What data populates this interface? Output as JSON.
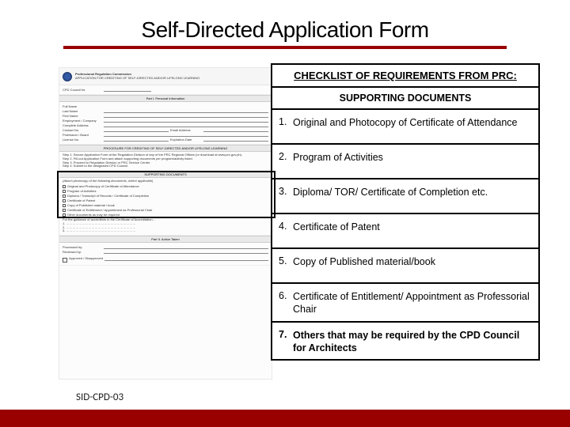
{
  "title": "Self-Directed Application Form",
  "form": {
    "org": "Professional Regulation Commission",
    "subtitle": "APPLICATION FOR CREDITING OF SELF-DIRECTED AND/OR LIFELONG LEARNING",
    "council_label": "CPD Council for",
    "part1": "Part I. Personal Information",
    "fields": {
      "fullname": "Full Name",
      "lastname": "Last Name",
      "firstname": "First Name",
      "mi": "M.I.",
      "employer": "Employment / Company",
      "address": "Complete Address",
      "contact": "Contact No.",
      "email": "Email Address",
      "profession": "Profession / Board",
      "license": "License No.",
      "expire": "Expiration Date"
    },
    "proc_bar": "PROCEDURE FOR CREDITING OF SELF-DIRECTED AND/OR LIFELONG LEARNING",
    "steps": {
      "s1": "Step 1. Secure Application Form at the Regulation Division of any of the PRC Regional Offices (or download at www.prc.gov.ph).",
      "s2": "Step 2. Fill-out Application Form and attach supporting documents per program/activity listed.",
      "s3": "Step 3. Proceed to Regulation Division or PRC Service Center.",
      "s4": "Step 4. Submit to the designated CPD Council."
    },
    "sup_bar": "SUPPORTING DOCUMENTS",
    "sup_note": "(Attach photocopy of the following documents, where applicable)",
    "sup_items": {
      "a": "Original and Photocopy of Certificate of Attendance",
      "b": "Program of Activities",
      "c": "Diploma / Transcript of Records / Certificate of Completion",
      "d": "Certificate of Patent",
      "e": "Copy of Published material / book",
      "f": "Certificate of Entitlement / Appointment as Professorial Chair",
      "g": "Other documents as may be required"
    },
    "acc_note": "For the guidance of accreditors in the Certificate of Accreditation…",
    "part2": "Part II. Action Taken",
    "processed": "Processed by:",
    "reviewed": "Reviewed by:",
    "approved": "Approved / Disapproved"
  },
  "checklist": {
    "header": "CHECKLIST OF REQUIREMENTS FROM PRC:",
    "supporting": "SUPPORTING DOCUMENTS",
    "items": [
      {
        "num": "1.",
        "text": "Original and Photocopy of Certificate of Attendance",
        "bold": false
      },
      {
        "num": "2.",
        "text": "Program of Activities",
        "bold": false
      },
      {
        "num": "3.",
        "text": "Diploma/ TOR/ Certificate of Completion etc.",
        "bold": false
      },
      {
        "num": "4.",
        "text": "Certificate of Patent",
        "bold": false
      },
      {
        "num": "5.",
        "text": "Copy of Published material/book",
        "bold": false
      },
      {
        "num": "6.",
        "text": "Certificate of Entitlement/ Appointment as Professorial Chair",
        "bold": false
      },
      {
        "num": "7.",
        "text": "Others that may be required by the CPD Council for Architects",
        "bold": true
      }
    ]
  },
  "footer": {
    "code": "SID-CPD-03"
  },
  "colors": {
    "accent": "#990000",
    "text": "#000000",
    "body_bg": "#ffffff"
  }
}
